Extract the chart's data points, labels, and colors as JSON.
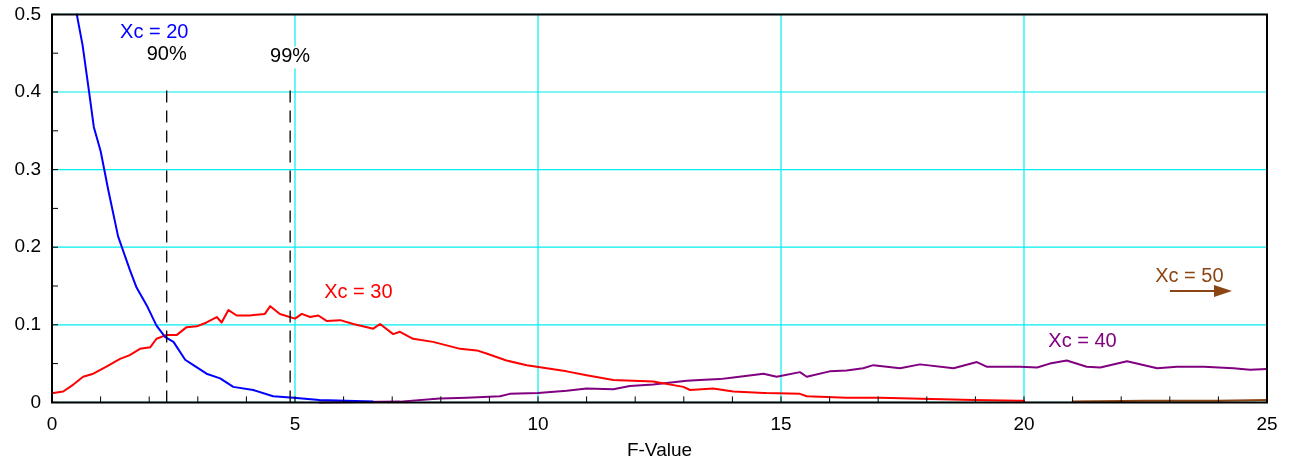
{
  "chart_data": {
    "type": "line",
    "xlabel": "F-Value",
    "xlim": [
      0,
      25
    ],
    "ylim": [
      0,
      0.5
    ],
    "xticks": [
      0,
      {
        "value": 1,
        "label": null
      },
      {
        "value": 2,
        "label": null
      },
      {
        "value": 3,
        "label": null
      },
      {
        "value": 4,
        "label": null
      },
      5,
      {
        "value": 6,
        "label": null
      },
      {
        "value": 7,
        "label": null
      },
      {
        "value": 8,
        "label": null
      },
      {
        "value": 9,
        "label": null
      },
      10,
      {
        "value": 11,
        "label": null
      },
      {
        "value": 12,
        "label": null
      },
      {
        "value": 13,
        "label": null
      },
      {
        "value": 14,
        "label": null
      },
      15,
      {
        "value": 16,
        "label": null
      },
      {
        "value": 17,
        "label": null
      },
      {
        "value": 18,
        "label": null
      },
      {
        "value": 19,
        "label": null
      },
      20,
      {
        "value": 21,
        "label": null
      },
      {
        "value": 22,
        "label": null
      },
      {
        "value": 23,
        "label": null
      },
      {
        "value": 24,
        "label": null
      },
      25
    ],
    "yticks": [
      0,
      {
        "value": 0.05,
        "label": null
      },
      0.1,
      {
        "value": 0.15,
        "label": null
      },
      0.2,
      {
        "value": 0.25,
        "label": null
      },
      0.3,
      {
        "value": 0.35,
        "label": null
      },
      0.4,
      {
        "value": 0.45,
        "label": null
      },
      0.5
    ],
    "grid": true,
    "legend": false,
    "marker": "none",
    "line_style": "solid",
    "series": [
      {
        "name": "Xc = 20",
        "color": "#0000ff",
        "x": [
          0.51,
          0.63,
          0.77,
          0.86,
          1.0,
          1.16,
          1.36,
          1.6,
          1.74,
          1.95,
          2.15,
          2.33,
          2.5,
          2.74,
          2.91,
          3.18,
          3.46,
          3.73,
          4.14,
          4.55,
          4.97,
          5.5,
          6.6
        ],
        "values": [
          0.5,
          0.46,
          0.397,
          0.355,
          0.324,
          0.273,
          0.214,
          0.171,
          0.148,
          0.125,
          0.099,
          0.084,
          0.078,
          0.055,
          0.048,
          0.037,
          0.031,
          0.02,
          0.016,
          0.008,
          0.006,
          0.003,
          0.001
        ]
      },
      {
        "name": "Xc = 30",
        "color": "#ff0000",
        "x": [
          0.03,
          0.23,
          0.44,
          0.64,
          0.85,
          1.12,
          1.4,
          1.6,
          1.81,
          2.02,
          2.15,
          2.36,
          2.57,
          2.77,
          2.98,
          3.18,
          3.39,
          3.49,
          3.63,
          3.8,
          4.07,
          4.38,
          4.49,
          4.69,
          5.0,
          5.14,
          5.31,
          5.48,
          5.65,
          5.93,
          6.2,
          6.61,
          6.75,
          7.02,
          7.16,
          7.43,
          7.84,
          8.4,
          8.74,
          8.94,
          9.35,
          9.77,
          10.18,
          10.59,
          11.0,
          11.55,
          11.96,
          12.37,
          12.99,
          13.13,
          13.6,
          14.02,
          14.7,
          15.39,
          15.53,
          16.35,
          17.04,
          18.95,
          20.0
        ],
        "values": [
          0.012,
          0.014,
          0.023,
          0.033,
          0.037,
          0.046,
          0.056,
          0.061,
          0.069,
          0.071,
          0.082,
          0.087,
          0.087,
          0.097,
          0.098,
          0.103,
          0.11,
          0.103,
          0.119,
          0.112,
          0.112,
          0.114,
          0.124,
          0.114,
          0.108,
          0.114,
          0.11,
          0.112,
          0.105,
          0.106,
          0.101,
          0.095,
          0.101,
          0.088,
          0.091,
          0.082,
          0.078,
          0.069,
          0.067,
          0.063,
          0.054,
          0.048,
          0.044,
          0.04,
          0.035,
          0.029,
          0.028,
          0.027,
          0.02,
          0.016,
          0.018,
          0.014,
          0.012,
          0.011,
          0.008,
          0.006,
          0.006,
          0.003,
          0.002
        ]
      },
      {
        "name": "Xc = 40",
        "color": "#800080",
        "x": [
          5.5,
          7.16,
          7.98,
          8.53,
          9.22,
          9.42,
          10.0,
          10.59,
          11.0,
          11.55,
          11.89,
          12.37,
          13.06,
          13.33,
          13.74,
          14.02,
          14.64,
          14.91,
          15.39,
          15.53,
          16.0,
          16.35,
          16.69,
          16.9,
          17.45,
          17.86,
          18.55,
          19.03,
          19.23,
          19.92,
          20.27,
          20.53,
          20.88,
          21.29,
          21.57,
          22.12,
          22.74,
          23.15,
          23.7,
          24.31,
          24.65,
          25
        ],
        "values": [
          0.0,
          0.001,
          0.005,
          0.006,
          0.008,
          0.011,
          0.012,
          0.015,
          0.018,
          0.017,
          0.021,
          0.023,
          0.028,
          0.029,
          0.03,
          0.032,
          0.037,
          0.033,
          0.039,
          0.033,
          0.04,
          0.041,
          0.044,
          0.048,
          0.044,
          0.049,
          0.044,
          0.052,
          0.046,
          0.046,
          0.045,
          0.05,
          0.054,
          0.046,
          0.045,
          0.053,
          0.044,
          0.046,
          0.046,
          0.044,
          0.042,
          0.043
        ]
      },
      {
        "name": "Xc = 50",
        "color": "#8b4513",
        "x": [
          21,
          22.5,
          24,
          25
        ],
        "values": [
          0.001,
          0.002,
          0.002,
          0.003
        ]
      }
    ],
    "ref_lines": [
      {
        "axis": "x",
        "value": 2.36,
        "color": "#000000",
        "line_style": "dashed"
      },
      {
        "axis": "x",
        "value": 4.9,
        "color": "#000000",
        "line_style": "dashed"
      }
    ],
    "annotations": [
      "90%",
      "99%"
    ]
  }
}
